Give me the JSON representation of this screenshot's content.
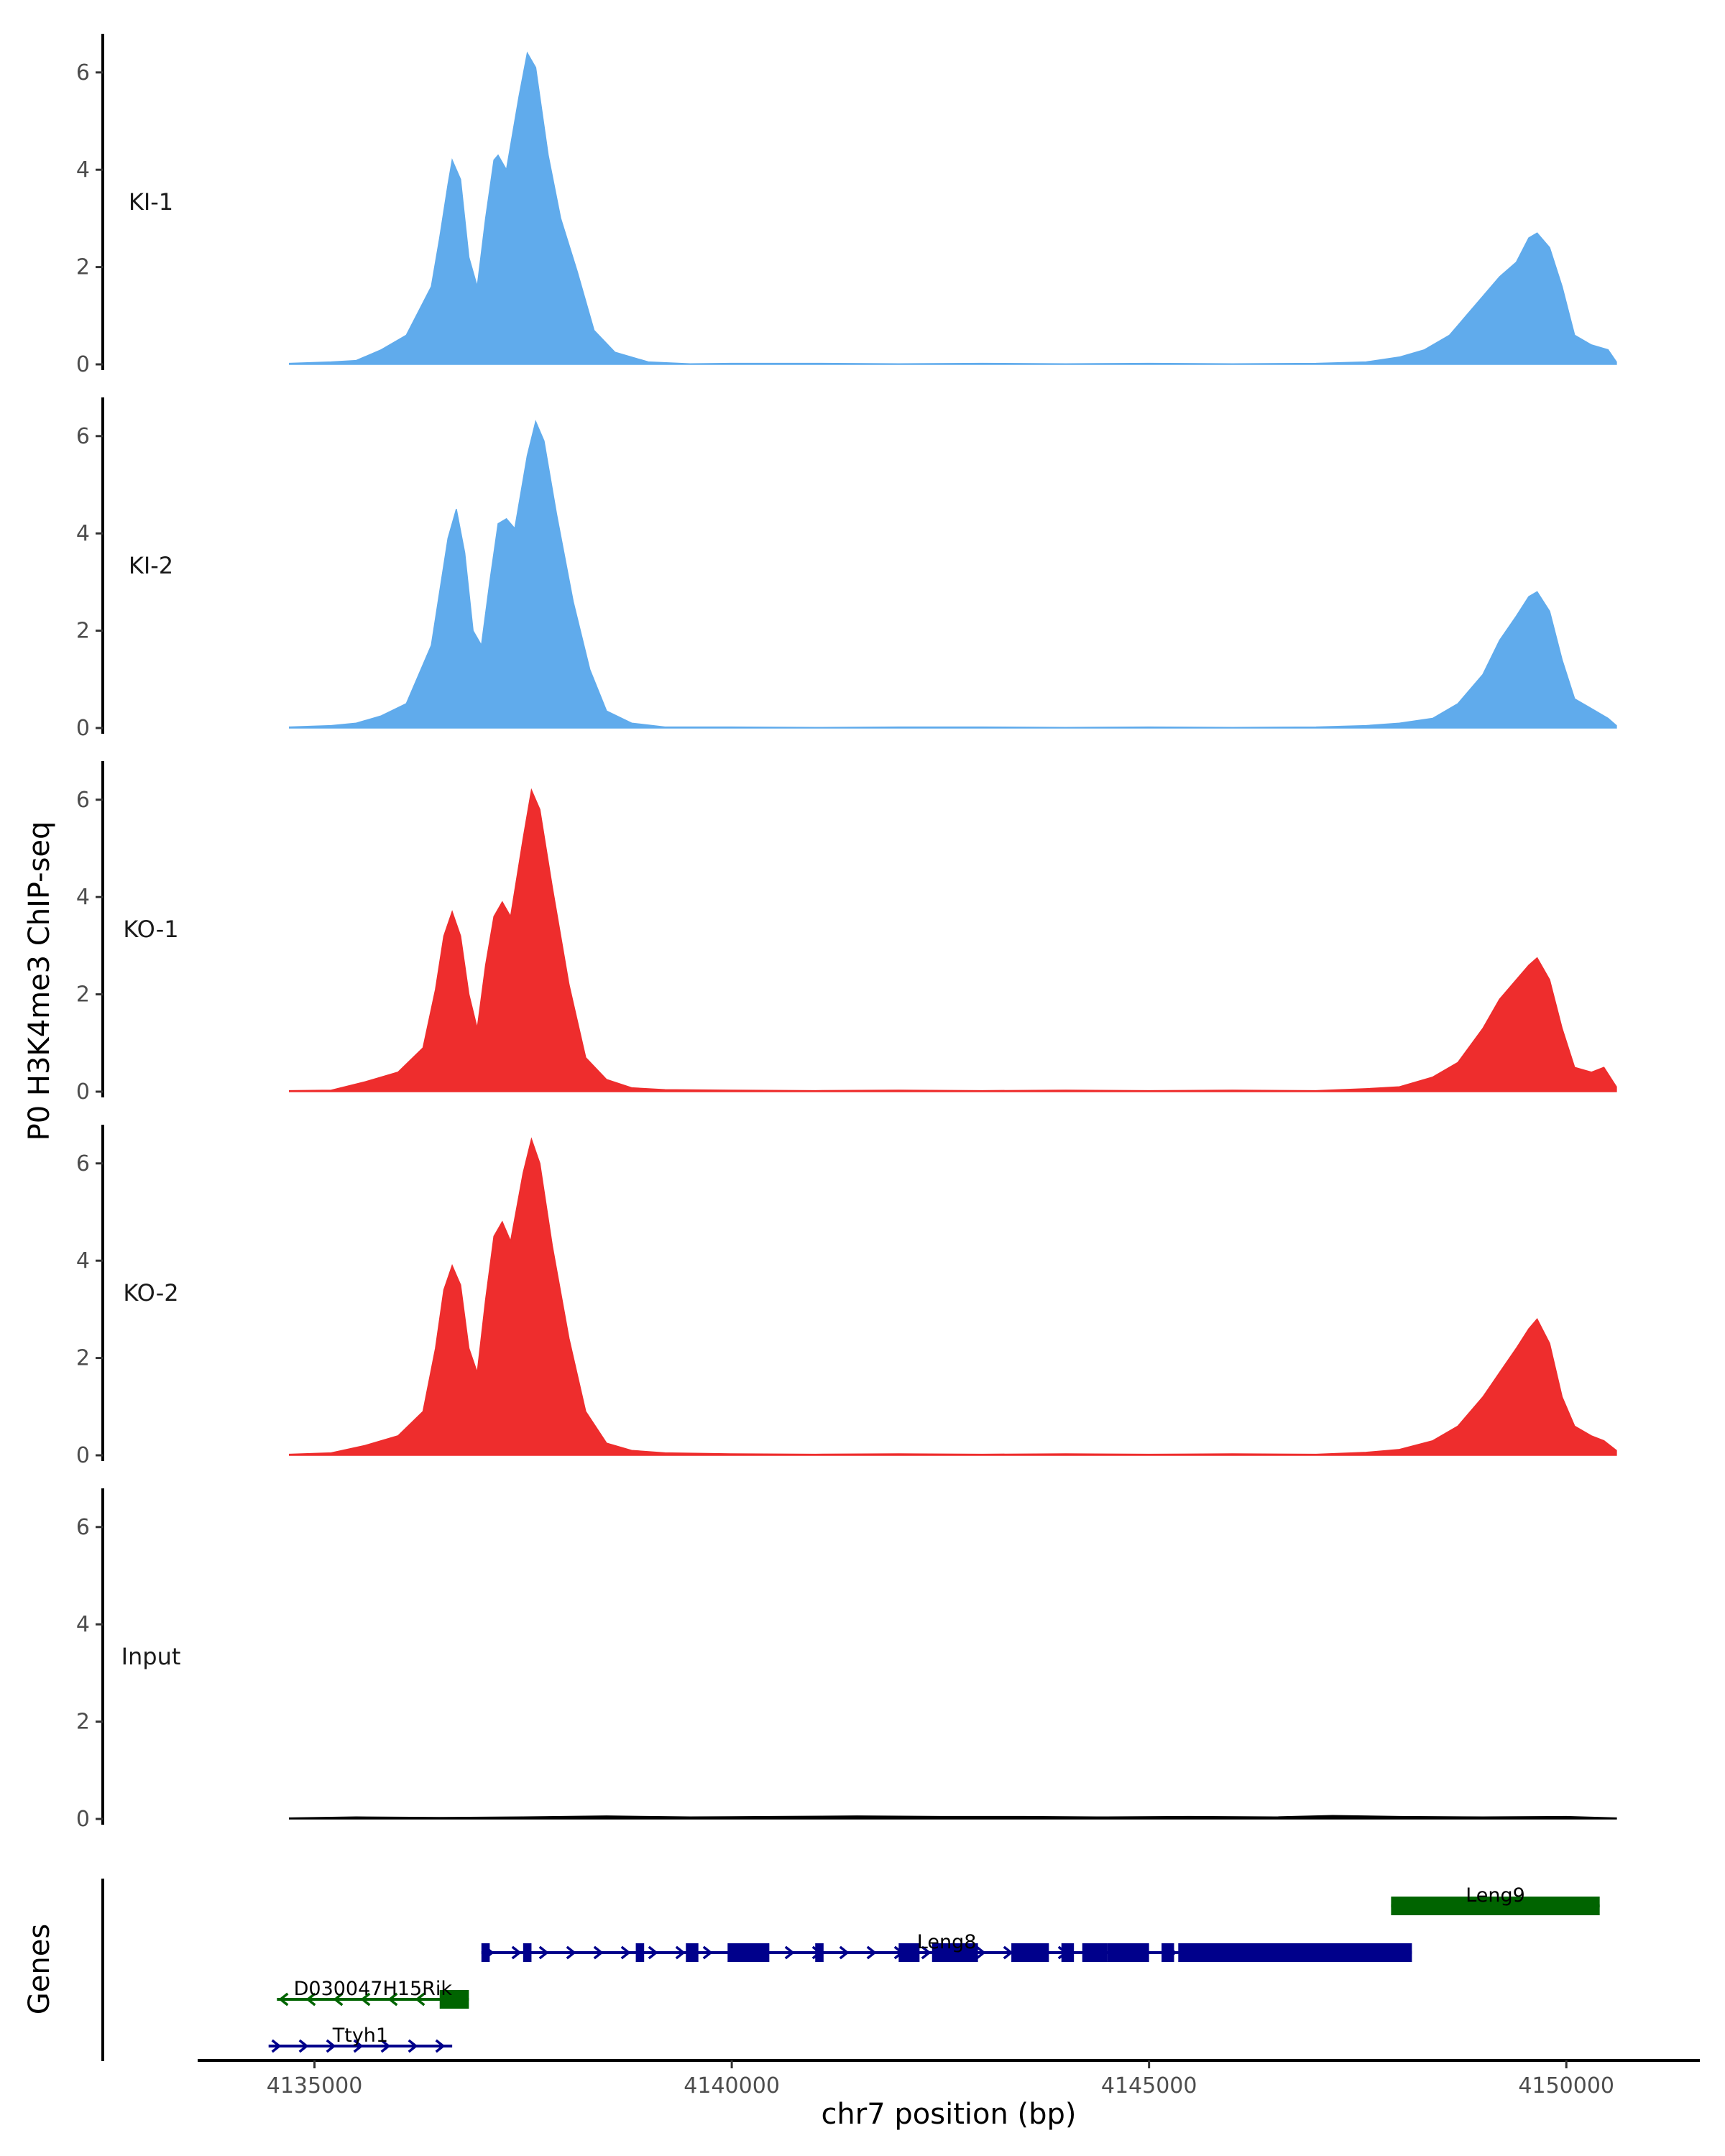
{
  "chart_data": {
    "type": "area",
    "ylabel": "P0 H3K4me3 ChIP-seq",
    "xlabel": "chr7 position (bp)",
    "xlim": [
      4133600,
      4151600
    ],
    "ylim": [
      0,
      6.7
    ],
    "y_ticks": [
      0,
      2,
      4,
      6
    ],
    "x_ticks": [
      4135000,
      4140000,
      4145000,
      4150000
    ],
    "x_tick_labels": [
      "4135000",
      "4140000",
      "4145000",
      "4150000"
    ],
    "genes_label": "Genes",
    "tracks": [
      {
        "name": "KI-1",
        "color": "#60ABEC",
        "points": [
          [
            4134700,
            0.02
          ],
          [
            4135200,
            0.05
          ],
          [
            4135500,
            0.08
          ],
          [
            4135800,
            0.3
          ],
          [
            4136100,
            0.6
          ],
          [
            4136400,
            1.6
          ],
          [
            4136500,
            2.6
          ],
          [
            4136600,
            3.7
          ],
          [
            4136650,
            4.2
          ],
          [
            4136750,
            3.8
          ],
          [
            4136850,
            2.2
          ],
          [
            4136950,
            1.6
          ],
          [
            4137050,
            3.0
          ],
          [
            4137150,
            4.2
          ],
          [
            4137200,
            4.3
          ],
          [
            4137300,
            4.0
          ],
          [
            4137450,
            5.5
          ],
          [
            4137550,
            6.4
          ],
          [
            4137650,
            6.1
          ],
          [
            4137800,
            4.3
          ],
          [
            4137950,
            3.0
          ],
          [
            4138150,
            1.9
          ],
          [
            4138350,
            0.7
          ],
          [
            4138600,
            0.25
          ],
          [
            4139000,
            0.05
          ],
          [
            4139500,
            0.01
          ],
          [
            4140000,
            0.02
          ],
          [
            4141000,
            0.02
          ],
          [
            4142000,
            0.01
          ],
          [
            4143000,
            0.02
          ],
          [
            4144000,
            0.01
          ],
          [
            4145000,
            0.02
          ],
          [
            4146000,
            0.01
          ],
          [
            4147000,
            0.02
          ],
          [
            4147600,
            0.05
          ],
          [
            4148000,
            0.15
          ],
          [
            4148300,
            0.3
          ],
          [
            4148600,
            0.6
          ],
          [
            4148800,
            1.0
          ],
          [
            4149000,
            1.4
          ],
          [
            4149200,
            1.8
          ],
          [
            4149400,
            2.1
          ],
          [
            4149550,
            2.6
          ],
          [
            4149650,
            2.7
          ],
          [
            4149800,
            2.4
          ],
          [
            4149950,
            1.6
          ],
          [
            4150100,
            0.6
          ],
          [
            4150300,
            0.4
          ],
          [
            4150500,
            0.3
          ],
          [
            4150600,
            0.05
          ]
        ]
      },
      {
        "name": "KI-2",
        "color": "#60ABEC",
        "points": [
          [
            4134700,
            0.02
          ],
          [
            4135200,
            0.05
          ],
          [
            4135500,
            0.1
          ],
          [
            4135800,
            0.25
          ],
          [
            4136100,
            0.5
          ],
          [
            4136400,
            1.7
          ],
          [
            4136500,
            2.8
          ],
          [
            4136600,
            3.9
          ],
          [
            4136700,
            4.5
          ],
          [
            4136800,
            3.6
          ],
          [
            4136900,
            2.0
          ],
          [
            4137000,
            1.7
          ],
          [
            4137100,
            3.0
          ],
          [
            4137200,
            4.2
          ],
          [
            4137300,
            4.3
          ],
          [
            4137400,
            4.1
          ],
          [
            4137550,
            5.6
          ],
          [
            4137650,
            6.3
          ],
          [
            4137750,
            5.9
          ],
          [
            4137900,
            4.4
          ],
          [
            4138100,
            2.6
          ],
          [
            4138300,
            1.2
          ],
          [
            4138500,
            0.35
          ],
          [
            4138800,
            0.1
          ],
          [
            4139200,
            0.02
          ],
          [
            4140000,
            0.02
          ],
          [
            4141000,
            0.01
          ],
          [
            4142000,
            0.02
          ],
          [
            4143000,
            0.02
          ],
          [
            4144000,
            0.01
          ],
          [
            4145000,
            0.02
          ],
          [
            4146000,
            0.01
          ],
          [
            4147000,
            0.02
          ],
          [
            4147600,
            0.05
          ],
          [
            4148000,
            0.1
          ],
          [
            4148400,
            0.2
          ],
          [
            4148700,
            0.5
          ],
          [
            4149000,
            1.1
          ],
          [
            4149200,
            1.8
          ],
          [
            4149400,
            2.3
          ],
          [
            4149550,
            2.7
          ],
          [
            4149650,
            2.8
          ],
          [
            4149800,
            2.4
          ],
          [
            4149950,
            1.4
          ],
          [
            4150100,
            0.6
          ],
          [
            4150300,
            0.4
          ],
          [
            4150500,
            0.2
          ],
          [
            4150600,
            0.05
          ]
        ]
      },
      {
        "name": "KO-1",
        "color": "#EE2D2D",
        "points": [
          [
            4134700,
            0.02
          ],
          [
            4135200,
            0.03
          ],
          [
            4135600,
            0.2
          ],
          [
            4136000,
            0.4
          ],
          [
            4136300,
            0.9
          ],
          [
            4136450,
            2.1
          ],
          [
            4136550,
            3.2
          ],
          [
            4136650,
            3.7
          ],
          [
            4136750,
            3.2
          ],
          [
            4136850,
            2.0
          ],
          [
            4136950,
            1.3
          ],
          [
            4137050,
            2.6
          ],
          [
            4137150,
            3.6
          ],
          [
            4137250,
            3.9
          ],
          [
            4137350,
            3.6
          ],
          [
            4137500,
            5.2
          ],
          [
            4137600,
            6.2
          ],
          [
            4137700,
            5.8
          ],
          [
            4137850,
            4.2
          ],
          [
            4138050,
            2.2
          ],
          [
            4138250,
            0.7
          ],
          [
            4138500,
            0.25
          ],
          [
            4138800,
            0.08
          ],
          [
            4139200,
            0.04
          ],
          [
            4140000,
            0.03
          ],
          [
            4141000,
            0.02
          ],
          [
            4142000,
            0.03
          ],
          [
            4143000,
            0.02
          ],
          [
            4144000,
            0.03
          ],
          [
            4145000,
            0.02
          ],
          [
            4146000,
            0.03
          ],
          [
            4147000,
            0.02
          ],
          [
            4147600,
            0.06
          ],
          [
            4148000,
            0.1
          ],
          [
            4148400,
            0.3
          ],
          [
            4148700,
            0.6
          ],
          [
            4149000,
            1.3
          ],
          [
            4149200,
            1.9
          ],
          [
            4149400,
            2.3
          ],
          [
            4149550,
            2.6
          ],
          [
            4149650,
            2.75
          ],
          [
            4149800,
            2.3
          ],
          [
            4149950,
            1.3
          ],
          [
            4150100,
            0.5
          ],
          [
            4150300,
            0.4
          ],
          [
            4150450,
            0.5
          ],
          [
            4150600,
            0.1
          ]
        ]
      },
      {
        "name": "KO-2",
        "color": "#EE2D2D",
        "points": [
          [
            4134700,
            0.02
          ],
          [
            4135200,
            0.05
          ],
          [
            4135600,
            0.2
          ],
          [
            4136000,
            0.4
          ],
          [
            4136300,
            0.9
          ],
          [
            4136450,
            2.2
          ],
          [
            4136550,
            3.4
          ],
          [
            4136650,
            3.9
          ],
          [
            4136750,
            3.5
          ],
          [
            4136850,
            2.2
          ],
          [
            4136950,
            1.7
          ],
          [
            4137050,
            3.2
          ],
          [
            4137150,
            4.5
          ],
          [
            4137250,
            4.8
          ],
          [
            4137350,
            4.4
          ],
          [
            4137500,
            5.8
          ],
          [
            4137600,
            6.5
          ],
          [
            4137700,
            6.0
          ],
          [
            4137850,
            4.3
          ],
          [
            4138050,
            2.4
          ],
          [
            4138250,
            0.9
          ],
          [
            4138500,
            0.25
          ],
          [
            4138800,
            0.1
          ],
          [
            4139200,
            0.05
          ],
          [
            4140000,
            0.03
          ],
          [
            4141000,
            0.02
          ],
          [
            4142000,
            0.03
          ],
          [
            4143000,
            0.02
          ],
          [
            4144000,
            0.03
          ],
          [
            4145000,
            0.02
          ],
          [
            4146000,
            0.03
          ],
          [
            4147000,
            0.02
          ],
          [
            4147600,
            0.06
          ],
          [
            4148000,
            0.12
          ],
          [
            4148400,
            0.3
          ],
          [
            4148700,
            0.6
          ],
          [
            4149000,
            1.2
          ],
          [
            4149200,
            1.7
          ],
          [
            4149400,
            2.2
          ],
          [
            4149550,
            2.6
          ],
          [
            4149650,
            2.8
          ],
          [
            4149800,
            2.3
          ],
          [
            4149950,
            1.2
          ],
          [
            4150100,
            0.6
          ],
          [
            4150300,
            0.4
          ],
          [
            4150450,
            0.3
          ],
          [
            4150600,
            0.1
          ]
        ]
      },
      {
        "name": "Input",
        "color": "#000000",
        "points": [
          [
            4134700,
            0.02
          ],
          [
            4135500,
            0.04
          ],
          [
            4136500,
            0.03
          ],
          [
            4137500,
            0.04
          ],
          [
            4138500,
            0.06
          ],
          [
            4139500,
            0.04
          ],
          [
            4140500,
            0.05
          ],
          [
            4141500,
            0.06
          ],
          [
            4142500,
            0.05
          ],
          [
            4143500,
            0.05
          ],
          [
            4144500,
            0.04
          ],
          [
            4145500,
            0.05
          ],
          [
            4146500,
            0.04
          ],
          [
            4147200,
            0.07
          ],
          [
            4148000,
            0.05
          ],
          [
            4149000,
            0.04
          ],
          [
            4150000,
            0.05
          ],
          [
            4150600,
            0.02
          ]
        ]
      }
    ],
    "genes": [
      {
        "name": "Leng9",
        "color": "#006400",
        "strand": "-",
        "start": 4147900,
        "end": 4150400,
        "row": 0,
        "exons": [
          [
            4147900,
            4150400
          ]
        ]
      },
      {
        "name": "Leng8",
        "color": "#00008B",
        "strand": "+",
        "start": 4137000,
        "end": 4148150,
        "row": 1,
        "exons": [
          [
            4137000,
            4137100
          ],
          [
            4137500,
            4137600
          ],
          [
            4138850,
            4138950
          ],
          [
            4139450,
            4139600
          ],
          [
            4139950,
            4140450
          ],
          [
            4141000,
            4141100
          ],
          [
            4142000,
            4142250
          ],
          [
            4142400,
            4142950
          ],
          [
            4143350,
            4143800
          ],
          [
            4143950,
            4144100
          ],
          [
            4144200,
            4144500
          ],
          [
            4144500,
            4145000
          ],
          [
            4145150,
            4145300
          ],
          [
            4145350,
            4148150
          ]
        ]
      },
      {
        "name": "D030047H15Rik",
        "color": "#006400",
        "strand": "-",
        "start": 4134550,
        "end": 4136850,
        "row": 2,
        "exons": [
          [
            4136500,
            4136850
          ]
        ]
      },
      {
        "name": "Ttyh1",
        "color": "#00008B",
        "strand": "+",
        "start": 4134450,
        "end": 4136650,
        "row": 3,
        "exons": []
      }
    ]
  }
}
